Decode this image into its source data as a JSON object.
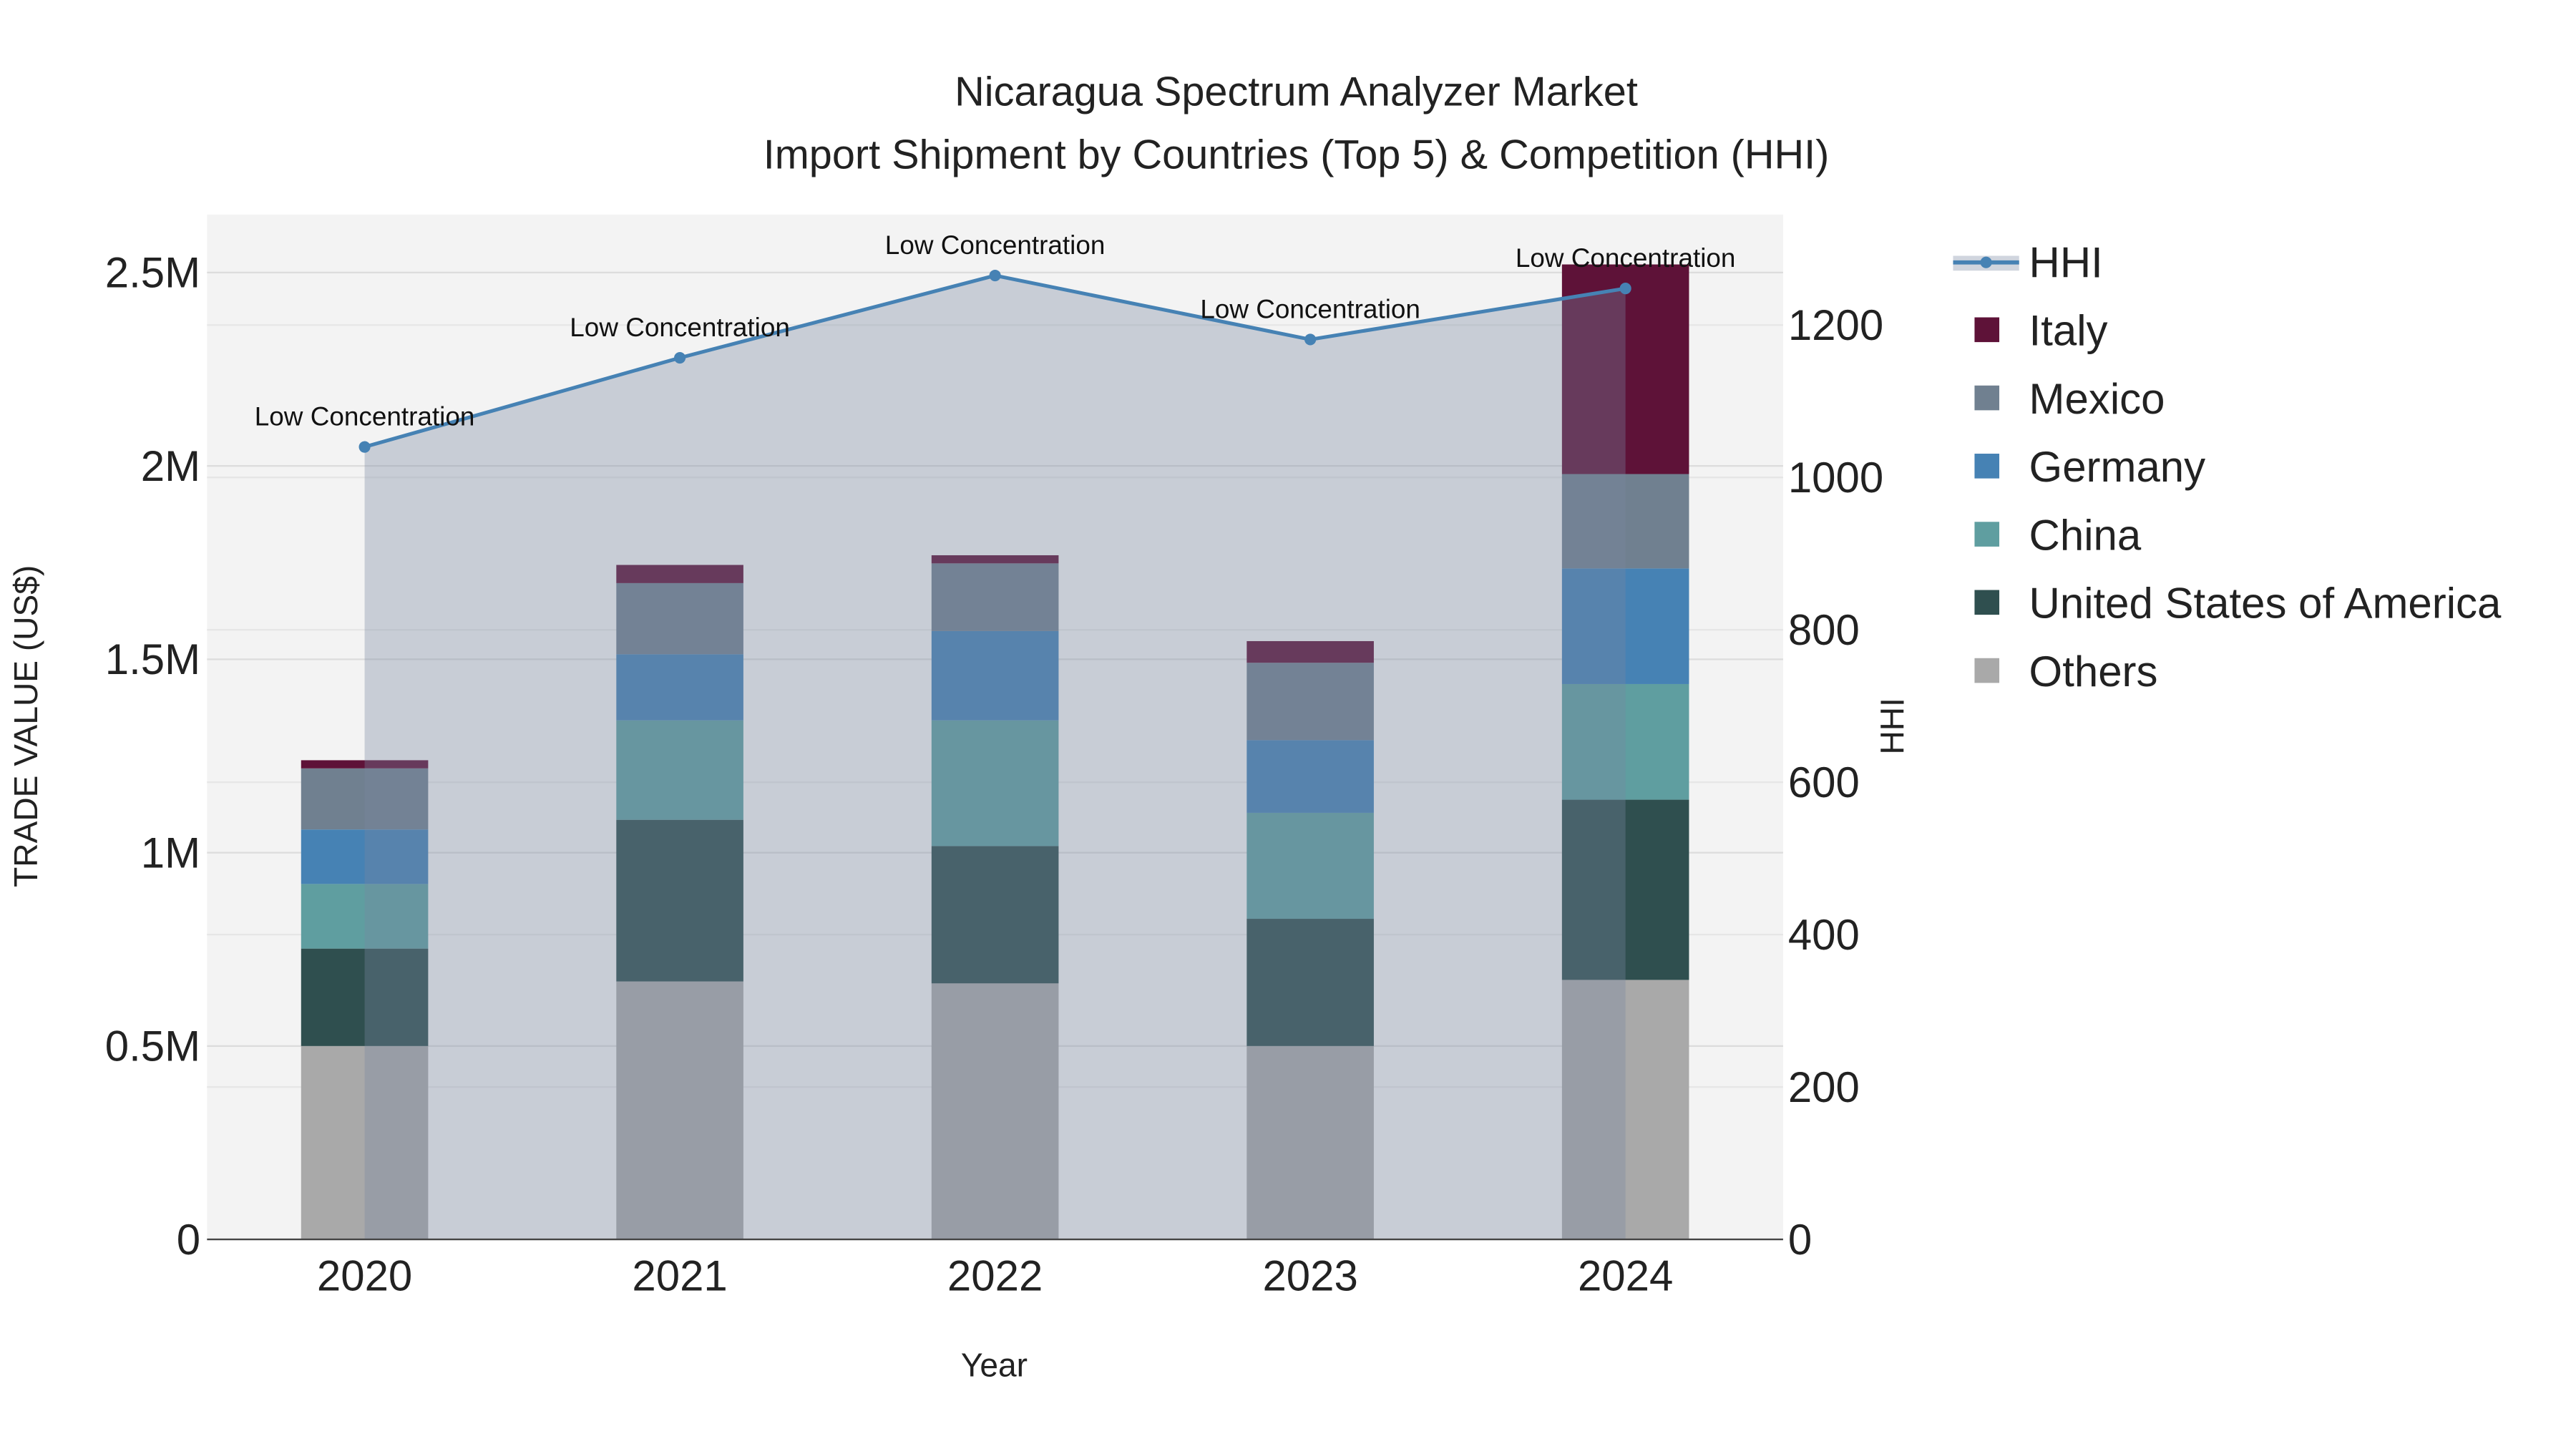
{
  "chart_data": {
    "type": "bar",
    "stacked": true,
    "title": "Nicaragua Spectrum Analyzer Market",
    "subtitle": "Import Shipment by Countries (Top 5) & Competition (HHI)",
    "xlabel": "Year",
    "ylabel": "TRADE VALUE (US$)",
    "y2label": "HHI",
    "categories": [
      "2020",
      "2021",
      "2022",
      "2023",
      "2024"
    ],
    "ylim": [
      0,
      2650000
    ],
    "y2lim": [
      0,
      1345
    ],
    "yticks": [
      {
        "v": 0,
        "label": "0"
      },
      {
        "v": 500000,
        "label": "0.5M"
      },
      {
        "v": 1000000,
        "label": "1M"
      },
      {
        "v": 1500000,
        "label": "1.5M"
      },
      {
        "v": 2000000,
        "label": "2M"
      },
      {
        "v": 2500000,
        "label": "2.5M"
      }
    ],
    "y2ticks": [
      {
        "v": 0,
        "label": "0"
      },
      {
        "v": 200,
        "label": "200"
      },
      {
        "v": 400,
        "label": "400"
      },
      {
        "v": 600,
        "label": "600"
      },
      {
        "v": 800,
        "label": "800"
      },
      {
        "v": 1000,
        "label": "1000"
      },
      {
        "v": 1200,
        "label": "1200"
      }
    ],
    "series": [
      {
        "name": "Others",
        "color": "#a9a9a9",
        "values": [
          500000,
          667000,
          662000,
          500000,
          671000
        ]
      },
      {
        "name": "United States of America",
        "color": "#2f4f4f",
        "values": [
          252000,
          418000,
          355000,
          329000,
          466000
        ]
      },
      {
        "name": "China",
        "color": "#5f9ea0",
        "values": [
          167000,
          257000,
          325000,
          274000,
          299000
        ]
      },
      {
        "name": "Germany",
        "color": "#4682b4",
        "values": [
          141000,
          171000,
          231000,
          188000,
          299000
        ]
      },
      {
        "name": "Mexico",
        "color": "#708090",
        "values": [
          158000,
          184000,
          175000,
          200000,
          244000
        ]
      },
      {
        "name": "Italy",
        "color": "#5e1238",
        "values": [
          21000,
          47000,
          21000,
          56000,
          542000
        ]
      }
    ],
    "hhi": {
      "name": "HHI",
      "color": "#4682b4",
      "values": [
        1040,
        1157,
        1265,
        1181,
        1248
      ],
      "annotations": [
        "Low Concentration",
        "Low Concentration",
        "Low Concentration",
        "Low Concentration",
        "Low Concentration"
      ]
    },
    "legend": {
      "placement": "right",
      "order": [
        "HHI",
        "Italy",
        "Mexico",
        "Germany",
        "China",
        "United States of America",
        "Others"
      ]
    },
    "grid": true
  }
}
